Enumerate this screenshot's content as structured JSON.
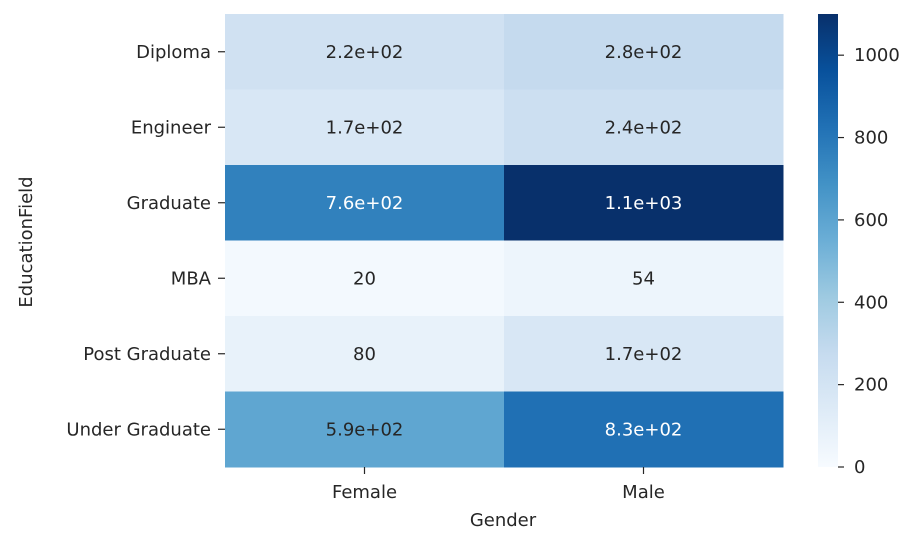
{
  "chart_data": {
    "type": "heatmap",
    "xlabel": "Gender",
    "ylabel": "EducationField",
    "x_categories": [
      "Female",
      "Male"
    ],
    "y_categories": [
      "Diploma",
      "Engineer",
      "Graduate",
      "MBA",
      "Post Graduate",
      "Under Graduate"
    ],
    "values": [
      [
        220,
        280
      ],
      [
        170,
        240
      ],
      [
        760,
        1100
      ],
      [
        20,
        54
      ],
      [
        80,
        170
      ],
      [
        590,
        830
      ]
    ],
    "cell_labels": [
      [
        "2.2e+02",
        "2.8e+02"
      ],
      [
        "1.7e+02",
        "2.4e+02"
      ],
      [
        "7.6e+02",
        "1.1e+03"
      ],
      [
        "20",
        "54"
      ],
      [
        "80",
        "1.7e+02"
      ],
      [
        "5.9e+02",
        "8.3e+02"
      ]
    ],
    "colormap": "Blues",
    "colorbar": {
      "vmin": 0,
      "vmax": 1100,
      "ticks": [
        0,
        200,
        400,
        600,
        800,
        1000
      ],
      "tick_labels": [
        "0",
        "200",
        "400",
        "600",
        "800",
        "1000"
      ]
    },
    "colors": {
      "low": "#f7fbff",
      "high": "#08306b",
      "text_dark": "#262626",
      "text_light": "#ffffff"
    }
  }
}
